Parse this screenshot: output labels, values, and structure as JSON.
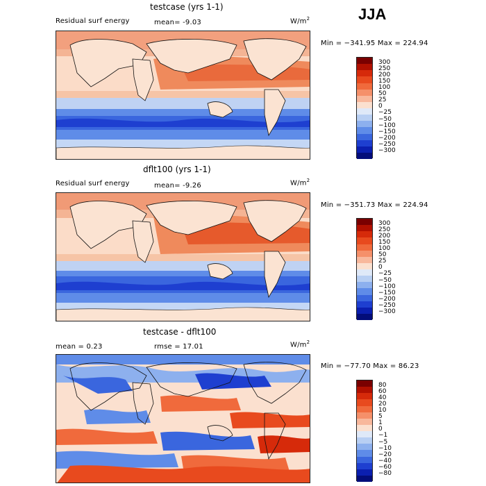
{
  "season": "JJA",
  "panels": [
    {
      "title": "testcase (yrs 1-1)",
      "variable": "Residual surf energy",
      "stat": "mean=   -9.03",
      "units": "W/m",
      "units_sup": "2",
      "minmax": "Min = −341.95 Max = 224.94",
      "colorbar": {
        "labels": [
          "300",
          "250",
          "200",
          "150",
          "100",
          "50",
          "25",
          "0",
          "−25",
          "−50",
          "−100",
          "−150",
          "−200",
          "−250",
          "−300"
        ],
        "colors": [
          "#7a0000",
          "#b11000",
          "#d62a0a",
          "#e84a1e",
          "#f06a3c",
          "#f5906a",
          "#f8b89c",
          "#fbe0cf",
          "#dfe9f8",
          "#b8cff3",
          "#8db0ee",
          "#5f8ce8",
          "#3a66de",
          "#1e3fd0",
          "#0b1fb0",
          "#030d7a"
        ]
      }
    },
    {
      "title": "dflt100 (yrs 1-1)",
      "variable": "Residual surf energy",
      "stat": "mean=   -9.26",
      "units": "W/m",
      "units_sup": "2",
      "minmax": "Min = −351.73 Max = 224.94",
      "colorbar": {
        "labels": [
          "300",
          "250",
          "200",
          "150",
          "100",
          "50",
          "25",
          "0",
          "−25",
          "−50",
          "−100",
          "−150",
          "−200",
          "−250",
          "−300"
        ],
        "colors": [
          "#7a0000",
          "#b11000",
          "#d62a0a",
          "#e84a1e",
          "#f06a3c",
          "#f5906a",
          "#f8b89c",
          "#fbe0cf",
          "#dfe9f8",
          "#b8cff3",
          "#8db0ee",
          "#5f8ce8",
          "#3a66de",
          "#1e3fd0",
          "#0b1fb0",
          "#030d7a"
        ]
      }
    },
    {
      "title": "testcase - dflt100",
      "variable": "mean =    0.23",
      "stat": "rmse =   17.01",
      "units": "W/m",
      "units_sup": "2",
      "minmax": "Min = −77.70 Max =  86.23",
      "colorbar": {
        "labels": [
          "80",
          "60",
          "40",
          "20",
          "10",
          "5",
          "1",
          "0",
          "−1",
          "−5",
          "−10",
          "−20",
          "−40",
          "−60",
          "−80"
        ],
        "colors": [
          "#7a0000",
          "#b11000",
          "#d62a0a",
          "#e84a1e",
          "#f06a3c",
          "#f5906a",
          "#f8b89c",
          "#fbe0cf",
          "#dfe9f8",
          "#b8cff3",
          "#8db0ee",
          "#5f8ce8",
          "#3a66de",
          "#1e3fd0",
          "#0b1fb0",
          "#030d7a"
        ]
      }
    }
  ],
  "colors": {
    "land": "#fbe3d2",
    "ocean_warm": "#ee7a4c",
    "ocean_cold": "#3f6fe2",
    "coast": "#111111"
  }
}
